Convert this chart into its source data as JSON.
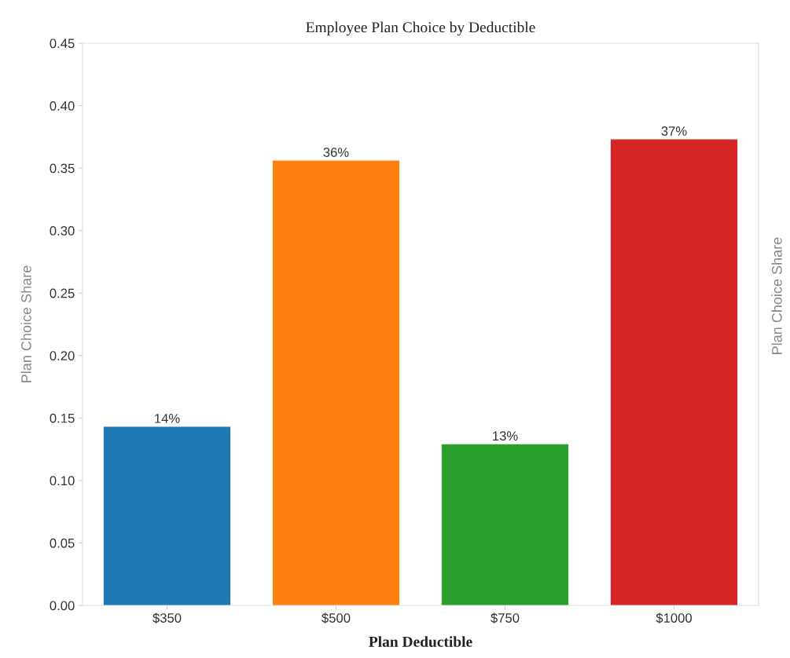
{
  "chart_data": {
    "type": "bar",
    "title": "Employee Plan Choice by Deductible",
    "xlabel": "Plan Deductible",
    "ylabel": "Plan Choice Share",
    "categories": [
      "$350",
      "$500",
      "$750",
      "$1000"
    ],
    "values": [
      0.143,
      0.356,
      0.129,
      0.373
    ],
    "colors": [
      "#1f77b4",
      "#ff7f0e",
      "#2ca02c",
      "#d62728"
    ],
    "value_labels": [
      "14%",
      "36%",
      "13%",
      "37%"
    ],
    "ylim": [
      0,
      0.45
    ],
    "yticks": [
      {
        "value": 0,
        "label": "0.00"
      },
      {
        "value": 0.05,
        "label": "0.05"
      },
      {
        "value": 0.1,
        "label": "0.10"
      },
      {
        "value": 0.15,
        "label": "0.15"
      },
      {
        "value": 0.2,
        "label": "0.20"
      },
      {
        "value": 0.25,
        "label": "0.25"
      },
      {
        "value": 0.3,
        "label": "0.30"
      },
      {
        "value": 0.35,
        "label": "0.35"
      },
      {
        "value": 0.4,
        "label": "0.40"
      },
      {
        "value": 0.45,
        "label": "0.45"
      }
    ],
    "annotations": [
      "Plan Choice Share"
    ],
    "grid": false,
    "legend": false
  }
}
